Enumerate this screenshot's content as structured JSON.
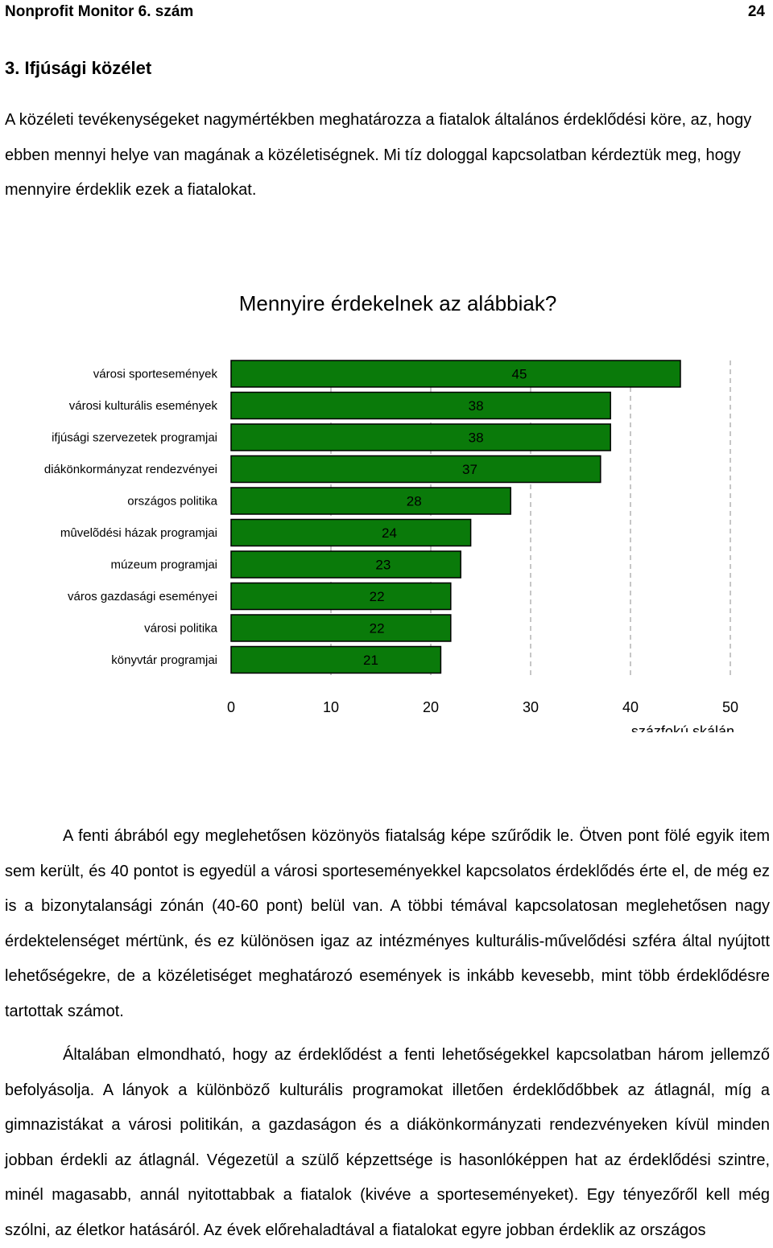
{
  "header": {
    "publication": "Nonprofit Monitor 6. szám",
    "page_number": "24"
  },
  "section": {
    "title": "3. Ifjúsági közélet"
  },
  "intro": {
    "text": "A közéleti tevékenységeket nagymértékben meghatározza a fiatalok általános érdeklődési köre, az, hogy ebben mennyi helye van magának a közéletiségnek. Mi tíz dologgal kapcsolatban kérdeztük meg, hogy mennyire érdeklik ezek a fiatalokat."
  },
  "chart_data": {
    "type": "bar",
    "orientation": "horizontal",
    "title": "Mennyire érdekelnek az alábbiak?",
    "xlabel": "százfokú skálán",
    "ylabel": "",
    "xlim": [
      0,
      50
    ],
    "xticks": [
      "0",
      "10",
      "20",
      "30",
      "40",
      "50"
    ],
    "grid": "vertical dashed",
    "bar_color": "#0a7a0a",
    "categories": [
      "városi sportesemények",
      "városi kulturális események",
      "ifjúsági szervezetek programjai",
      "diákönkormányzat rendezvényei",
      "országos politika",
      "mûvelõdési házak programjai",
      "múzeum programjai",
      "város gazdasági eseményei",
      "városi politika",
      "könyvtár programjai"
    ],
    "values": [
      45,
      38,
      38,
      37,
      28,
      24,
      23,
      22,
      22,
      21
    ],
    "value_labels": [
      "45",
      "38",
      "38",
      "37",
      "28",
      "24",
      "23",
      "22",
      "22",
      "21"
    ]
  },
  "body": {
    "paragraph1": "A fenti ábrából egy meglehetősen közönyös fiatalság képe szűrődik le. Ötven pont fölé egyik item sem került, és 40 pontot is egyedül a városi sporteseményekkel kapcsolatos érdeklődés érte el, de még ez is a bizonytalansági zónán (40-60 pont) belül van. A többi témával kapcsolatosan meglehetősen nagy érdektelenséget mértünk, és ez különösen igaz az intézményes kulturális-művelődési szféra által nyújtott lehetőségekre, de a közéletiséget meghatározó események is inkább kevesebb, mint több érdeklődésre tartottak számot.",
    "paragraph2": "Általában elmondható, hogy az érdeklődést a fenti lehetőségekkel kapcsolatban három jellemző befolyásolja. A lányok a különböző kulturális programokat illetően érdeklődőbbek az átlagnál, míg a gimnazistákat a városi politikán, a gazdaságon és a diákönkormányzati rendezvényeken kívül minden jobban érdekli az átlagnál. Végezetül a szülő képzettsége is hasonlóképpen hat az érdeklődési szintre, minél magasabb, annál nyitottabbak a fiatalok (kivéve a sporteseményeket). Egy tényezőről kell még szólni, az életkor hatásáról. Az évek előrehaladtával a fiatalokat egyre jobban érdeklik az országos"
  }
}
